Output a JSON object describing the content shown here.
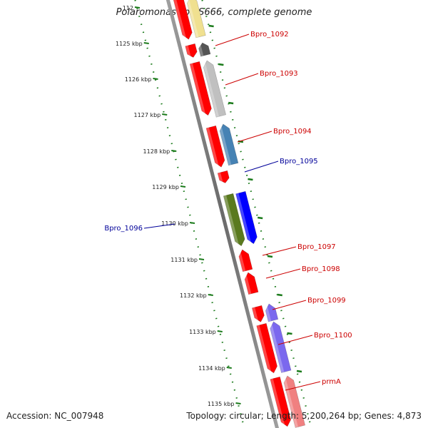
{
  "title": "Polaromonas sp. JS666, complete genome",
  "accession": "Accession: NC_007948",
  "topology": "Topology: circular; Length: 5,200,264 bp; Genes: 4,873",
  "ticks": [
    "112",
    "1125 kbp",
    "1126 kbp",
    "1127 kbp",
    "1128 kbp",
    "1129 kbp",
    "1130 kbp",
    "1131 kbp",
    "1132 kbp",
    "1133 kbp",
    "1134 kbp",
    "1135 kbp"
  ],
  "genes": [
    {
      "label": "",
      "strand": "+",
      "color": "#f0e090"
    },
    {
      "label": "",
      "strand": "-",
      "color": "#ff0000"
    },
    {
      "label": "Bpro_1092",
      "strand": "+",
      "color": "#555555"
    },
    {
      "label": "",
      "strand": "-",
      "color": "#ff0000"
    },
    {
      "label": "Bpro_1093",
      "strand": "+",
      "color": "#c0c0c0"
    },
    {
      "label": "",
      "strand": "-",
      "color": "#ff0000"
    },
    {
      "label": "Bpro_1094",
      "strand": "+",
      "color": "#4682b4"
    },
    {
      "label": "",
      "strand": "-",
      "color": "#ff0000"
    },
    {
      "label": "Bpro_1095",
      "strand": "-",
      "color": "#ff0000"
    },
    {
      "label": "",
      "strand": "-",
      "color": "#5a7a1e"
    },
    {
      "label": "Bpro_1096",
      "strand": "-",
      "color": "#0000ff"
    },
    {
      "label": "Bpro_1097",
      "strand": "+",
      "color": "#ff0000"
    },
    {
      "label": "Bpro_1098",
      "strand": "+",
      "color": "#ff0000"
    },
    {
      "label": "Bpro_1099",
      "strand": "+",
      "color": "#7b68ee"
    },
    {
      "label": "",
      "strand": "-",
      "color": "#ff0000"
    },
    {
      "label": "Bpro_1100",
      "strand": "+",
      "color": "#7b68ee"
    },
    {
      "label": "",
      "strand": "-",
      "color": "#ff0000"
    },
    {
      "label": "prmA",
      "strand": "+",
      "color": "#f08080"
    },
    {
      "label": "",
      "strand": "-",
      "color": "#ff0000"
    }
  ],
  "colors": {
    "label_plus": "#cc0000",
    "label_minus": "#000099",
    "tick_dots": "#1a7a1a",
    "backbone": "#808080"
  }
}
